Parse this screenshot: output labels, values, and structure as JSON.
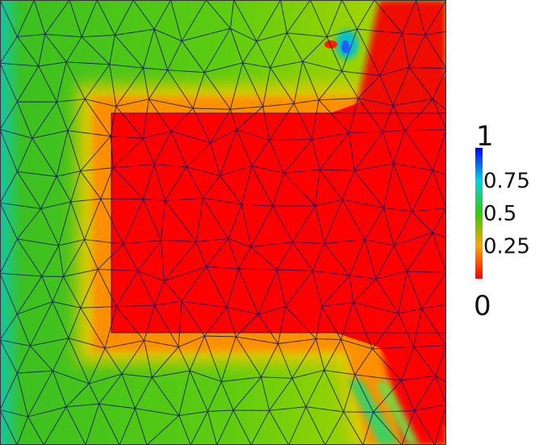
{
  "colormap": {
    "stops": [
      {
        "value": 0.0,
        "color": "#ff0000"
      },
      {
        "value": 0.25,
        "color": "#ffa500"
      },
      {
        "value": 0.5,
        "color": "#33cc00"
      },
      {
        "value": 0.75,
        "color": "#00d4e0"
      },
      {
        "value": 1.0,
        "color": "#0000ff"
      }
    ]
  },
  "legend": {
    "max_label": "1",
    "min_label": "0",
    "ticks": [
      {
        "value": 0.75,
        "label": "0.75"
      },
      {
        "value": 0.5,
        "label": "0.5"
      },
      {
        "value": 0.25,
        "label": "0.25"
      }
    ]
  },
  "field": {
    "background_value": 0.42,
    "inner_region_value": 0.0,
    "inner_region_label": "",
    "mesh_color": "#0a0a66"
  }
}
